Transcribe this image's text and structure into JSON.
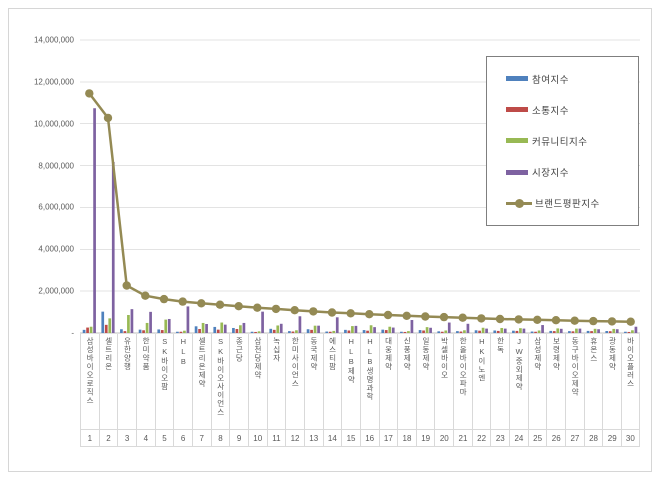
{
  "window": {
    "background": "#ffffff",
    "frame_border_color": "#d6d6d6"
  },
  "legend": {
    "border_color": "#7f7f7f"
  },
  "chart_data": {
    "type": "bar",
    "title": "",
    "xlabel": "",
    "ylabel": "",
    "grid": true,
    "legend_position": "right-top",
    "ylim": [
      0,
      14000000
    ],
    "yticks": [
      {
        "value": 14000000,
        "label": "14,000,000"
      },
      {
        "value": 12000000,
        "label": "12,000,000"
      },
      {
        "value": 10000000,
        "label": "10,000,000"
      },
      {
        "value": 8000000,
        "label": "8,000,000"
      },
      {
        "value": 6000000,
        "label": "6,000,000"
      },
      {
        "value": 4000000,
        "label": "4,000,000"
      },
      {
        "value": 2000000,
        "label": "2,000,000"
      },
      {
        "value": 0,
        "label": "-"
      }
    ],
    "categories": [
      "삼성바이오로직스",
      "셀트리온",
      "유한양행",
      "한미약품",
      "SK바이오팜",
      "HLB",
      "셀트리온제약",
      "SK바이오사이언스",
      "종근당",
      "삼천당제약",
      "녹십자",
      "한미사이언스",
      "동국제약",
      "에스티팜",
      "HLB제약",
      "HLB생명과학",
      "대웅제약",
      "신풍제약",
      "일동제약",
      "박셀바이오",
      "한올바이오파마",
      "HK이노엔",
      "한독",
      "JW중외제약",
      "삼성제약",
      "보령제약",
      "동구바이오제약",
      "휴온스",
      "광동제약",
      "바이오플러스"
    ],
    "ranks": [
      "1",
      "2",
      "3",
      "4",
      "5",
      "6",
      "7",
      "8",
      "9",
      "10",
      "11",
      "12",
      "13",
      "14",
      "15",
      "16",
      "17",
      "18",
      "19",
      "20",
      "21",
      "22",
      "23",
      "24",
      "25",
      "26",
      "27",
      "28",
      "29",
      "30"
    ],
    "series": [
      {
        "name": "참여지수",
        "type": "bar",
        "color": "#4f81bd",
        "values": [
          150000,
          1020000,
          180000,
          160000,
          170000,
          60000,
          320000,
          290000,
          240000,
          60000,
          200000,
          90000,
          180000,
          70000,
          150000,
          140000,
          160000,
          60000,
          140000,
          80000,
          90000,
          130000,
          120000,
          110000,
          70000,
          100000,
          90000,
          100000,
          95000,
          60000
        ]
      },
      {
        "name": "소통지수",
        "type": "bar",
        "color": "#be4b48",
        "values": [
          260000,
          390000,
          90000,
          130000,
          140000,
          60000,
          190000,
          160000,
          190000,
          50000,
          150000,
          70000,
          150000,
          60000,
          120000,
          110000,
          140000,
          50000,
          120000,
          60000,
          70000,
          110000,
          100000,
          100000,
          60000,
          90000,
          80000,
          90000,
          85000,
          50000
        ]
      },
      {
        "name": "커뮤니티지수",
        "type": "bar",
        "color": "#98b954",
        "values": [
          300000,
          700000,
          860000,
          480000,
          640000,
          110000,
          480000,
          500000,
          370000,
          80000,
          360000,
          130000,
          350000,
          100000,
          330000,
          370000,
          300000,
          90000,
          280000,
          120000,
          130000,
          250000,
          240000,
          230000,
          120000,
          220000,
          210000,
          200000,
          195000,
          130000
        ]
      },
      {
        "name": "시장지수",
        "type": "bar",
        "color": "#7e62a1",
        "values": [
          10740000,
          8170000,
          1140000,
          1010000,
          670000,
          1270000,
          430000,
          400000,
          480000,
          1020000,
          440000,
          800000,
          350000,
          750000,
          340000,
          280000,
          260000,
          620000,
          250000,
          500000,
          440000,
          210000,
          210000,
          210000,
          380000,
          200000,
          210000,
          180000,
          180000,
          300000
        ]
      },
      {
        "name": "브랜드평판지수",
        "type": "line",
        "color": "#948a54",
        "values": [
          11450000,
          10280000,
          2270000,
          1780000,
          1620000,
          1500000,
          1420000,
          1350000,
          1280000,
          1210000,
          1150000,
          1090000,
          1030000,
          980000,
          940000,
          900000,
          860000,
          820000,
          790000,
          760000,
          730000,
          700000,
          670000,
          650000,
          630000,
          610000,
          590000,
          570000,
          555000,
          540000
        ]
      }
    ]
  }
}
